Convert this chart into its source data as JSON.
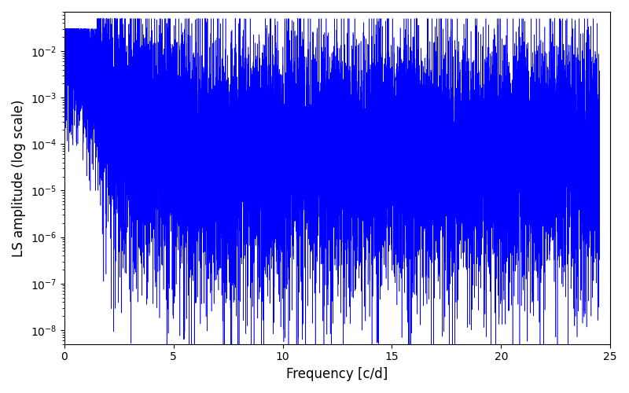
{
  "line_color": "#0000ff",
  "xlabel": "Frequency [c/d]",
  "ylabel": "LS amplitude (log scale)",
  "xlim": [
    0,
    25
  ],
  "ylim": [
    5e-09,
    0.07
  ],
  "freq_max": 24.5,
  "n_points": 15000,
  "seed": 7,
  "figsize": [
    8.0,
    5.0
  ],
  "dpi": 100,
  "background_color": "#ffffff",
  "line_width": 0.4
}
